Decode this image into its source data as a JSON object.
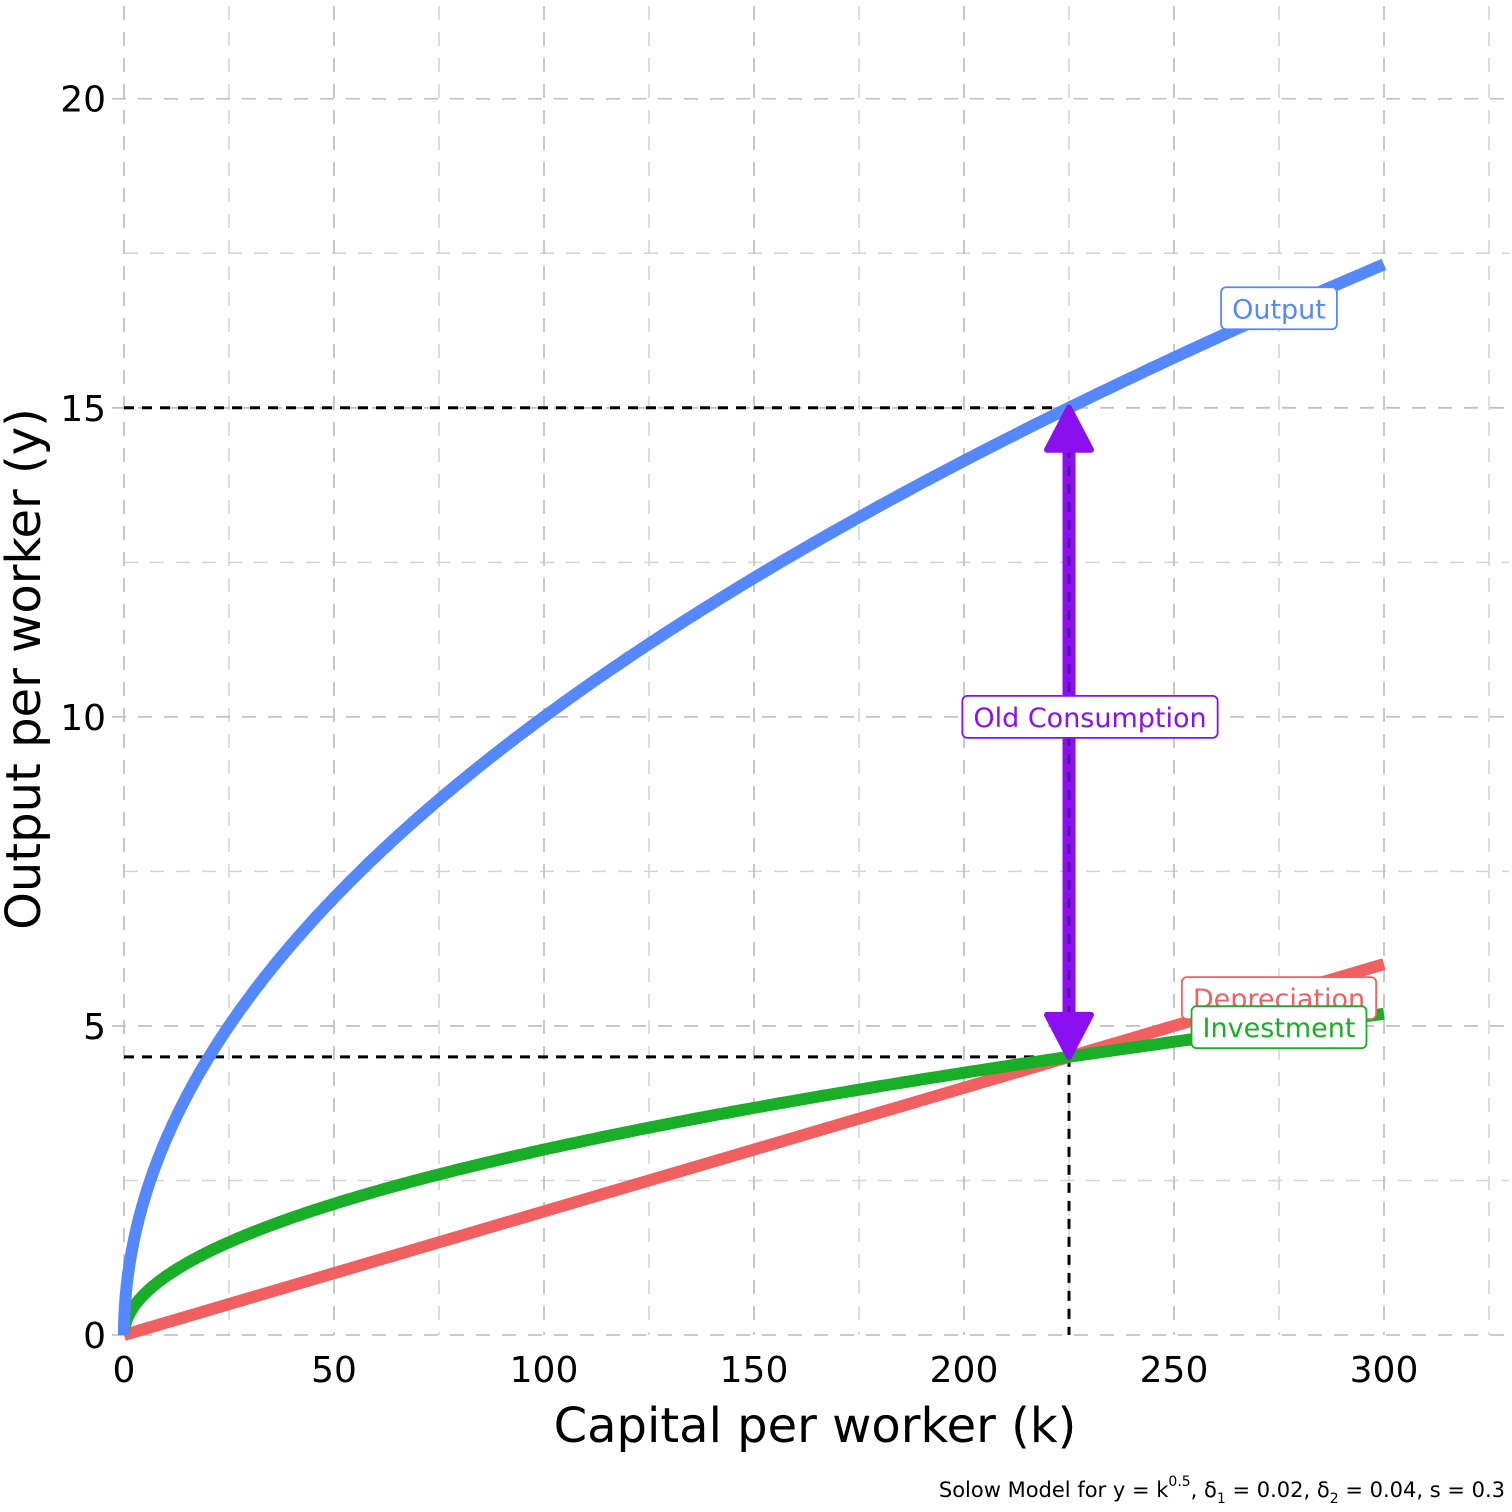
{
  "chart_data": {
    "type": "line",
    "xlabel": "Capital per worker (k)",
    "ylabel": "Output per worker (y)",
    "xlim": [
      0,
      325
    ],
    "ylim": [
      0,
      21.5
    ],
    "x_ticks": [
      "0",
      "50",
      "100",
      "150",
      "200",
      "250",
      "300"
    ],
    "x_tick_values": [
      0,
      50,
      100,
      150,
      200,
      250,
      300
    ],
    "y_ticks": [
      "0",
      "5",
      "10",
      "15",
      "20"
    ],
    "y_tick_values": [
      0,
      5,
      10,
      15,
      20
    ],
    "grid": true,
    "series": [
      {
        "name": "Output",
        "color": "#5588ff",
        "x": [
          0,
          2,
          5,
          10,
          20,
          30,
          40,
          50,
          60,
          75,
          90,
          100,
          120,
          140,
          160,
          180,
          200,
          225,
          250,
          275,
          300
        ],
        "values": [
          0,
          1.41,
          2.24,
          3.16,
          4.47,
          5.48,
          6.32,
          7.07,
          7.75,
          8.66,
          9.49,
          10,
          10.95,
          11.83,
          12.65,
          13.42,
          14.14,
          15,
          15.81,
          16.58,
          17.32
        ]
      },
      {
        "name": "Investment",
        "color": "#19ae27",
        "x": [
          0,
          2,
          5,
          10,
          20,
          30,
          40,
          50,
          60,
          75,
          90,
          100,
          120,
          140,
          160,
          180,
          200,
          225,
          250,
          275,
          300
        ],
        "values": [
          0,
          0.42,
          0.67,
          0.95,
          1.34,
          1.64,
          1.9,
          2.12,
          2.32,
          2.6,
          2.85,
          3,
          3.29,
          3.55,
          3.79,
          4.02,
          4.24,
          4.5,
          4.74,
          4.97,
          5.2
        ]
      },
      {
        "name": "Depreciation",
        "color": "#f06060",
        "x": [
          0,
          300
        ],
        "values": [
          0,
          6
        ]
      }
    ],
    "reference_lines": {
      "k_star": 225,
      "y_star": 15,
      "i_star": 4.5
    },
    "arrow": {
      "label": "Old Consumption",
      "color": "#8a10f0",
      "x": 225,
      "from": 4.5,
      "to": 15,
      "label_y": 10
    },
    "labels": {
      "output": "Output",
      "depreciation": "Depreciation",
      "investment": "Investment",
      "consumption": "Old Consumption"
    },
    "caption": {
      "prefix": "Solow Model for y = k",
      "exp": "0.5",
      "delta": "δ",
      "d1_sub": "1",
      "d1_val": " = 0.02, ",
      "d2_sub": "2",
      "d2_val": " = 0.04, s = 0.3",
      "sep": ", "
    }
  }
}
